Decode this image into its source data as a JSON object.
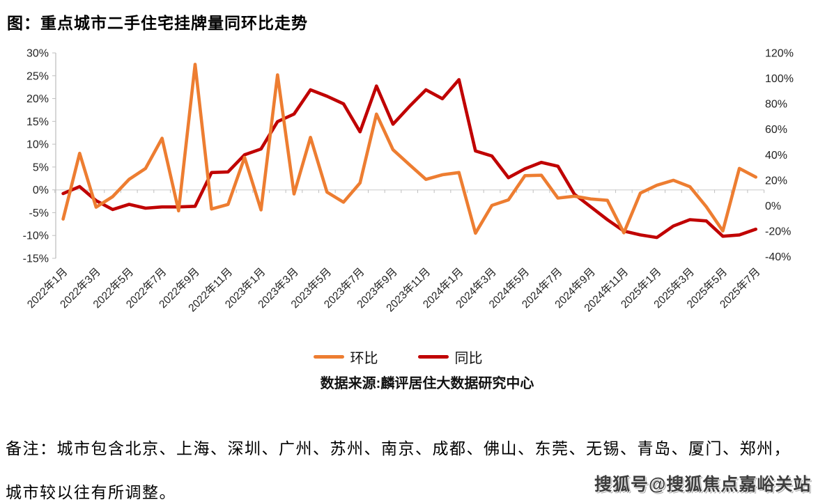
{
  "title": "图：重点城市二手住宅挂牌量同环比走势",
  "chart_data": {
    "type": "line",
    "categories": [
      "2022年1月",
      "2022年2月",
      "2022年3月",
      "2022年4月",
      "2022年5月",
      "2022年6月",
      "2022年7月",
      "2022年8月",
      "2022年9月",
      "2022年10月",
      "2022年11月",
      "2022年12月",
      "2023年1月",
      "2023年2月",
      "2023年3月",
      "2023年4月",
      "2023年5月",
      "2023年6月",
      "2023年7月",
      "2023年8月",
      "2023年9月",
      "2023年10月",
      "2023年11月",
      "2023年12月",
      "2024年1月",
      "2024年2月",
      "2024年3月",
      "2024年4月",
      "2024年5月",
      "2024年6月",
      "2024年7月",
      "2024年8月",
      "2024年9月",
      "2024年10月",
      "2024年11月",
      "2024年12月",
      "2025年1月",
      "2025年2月",
      "2025年3月",
      "2025年4月",
      "2025年5月",
      "2025年6月",
      "2025年7月"
    ],
    "xtick_label_every": 2,
    "series": [
      {
        "name": "环比",
        "axis": "left",
        "color": "#ED7D31",
        "values": [
          -6.4,
          8.0,
          -3.8,
          -1.5,
          2.3,
          4.7,
          11.3,
          -4.6,
          27.5,
          -4.2,
          -3.2,
          7.1,
          -4.4,
          25.2,
          -0.9,
          11.5,
          -0.5,
          -2.7,
          1.5,
          16.6,
          8.8,
          5.5,
          2.3,
          3.3,
          3.8,
          -9.5,
          -3.4,
          -2.2,
          3.1,
          3.2,
          -1.8,
          -1.4,
          -2.0,
          -2.3,
          -9.4,
          -0.7,
          1.0,
          2.1,
          0.7,
          -3.7,
          -9.0,
          4.7,
          2.8
        ]
      },
      {
        "name": "同比",
        "axis": "right",
        "color": "#C00000",
        "values": [
          9.5,
          15,
          4,
          -3,
          1,
          -2,
          -1,
          -1,
          -0.5,
          26,
          26.5,
          40,
          44.5,
          66,
          72,
          91,
          86,
          80,
          58,
          94,
          64,
          78,
          91,
          84,
          99,
          43,
          39,
          22,
          29,
          34,
          31,
          9,
          -1,
          -11,
          -20,
          -23,
          -25,
          -16,
          -11,
          -12,
          -24,
          -23,
          -18.5
        ]
      }
    ],
    "left_axis": {
      "tick_labels": [
        "30%",
        "25%",
        "20%",
        "15%",
        "10%",
        "5%",
        "0%",
        "-5%",
        "-10%",
        "-15%"
      ],
      "tick_values": [
        30,
        25,
        20,
        15,
        10,
        5,
        0,
        -5,
        -10,
        -15
      ],
      "min": -15,
      "max": 30
    },
    "right_axis": {
      "tick_labels": [
        "120%",
        "100%",
        "80%",
        "60%",
        "40%",
        "20%",
        "0%",
        "-20%",
        "-40%"
      ],
      "tick_values": [
        120,
        100,
        80,
        60,
        40,
        20,
        0,
        -20,
        -40
      ],
      "min": -40,
      "max": 120
    },
    "grid": "zero-line-only",
    "legend_position": "bottom",
    "source_note": "数据来源:麟评居住大数据研究中心"
  },
  "footer": {
    "note_line1": "备注：城市包含北京、上海、深圳、广州、苏州、南京、成都、佛山、东莞、无锡、青岛、厦门、郑州，",
    "note_line2": "城市较以往有所调整。",
    "watermark": "搜狐号@搜狐焦点嘉峪关站"
  }
}
